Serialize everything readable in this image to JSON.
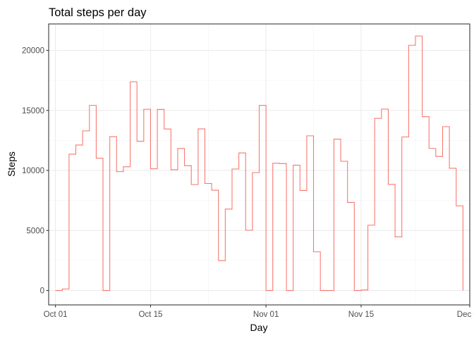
{
  "chart_data": {
    "type": "step",
    "title": "Total steps per day",
    "xlabel": "Day",
    "ylabel": "Steps",
    "line_color": "#F8766D",
    "grid": true,
    "legend": "none",
    "xlim": [
      "2012-09-30",
      "2012-12-01"
    ],
    "ylim": [
      -1200,
      22200
    ],
    "x_ticks": [
      {
        "date": "2012-10-01",
        "label": "Oct 01"
      },
      {
        "date": "2012-10-15",
        "label": "Oct 15"
      },
      {
        "date": "2012-11-01",
        "label": "Nov 01"
      },
      {
        "date": "2012-11-15",
        "label": "Nov 15"
      },
      {
        "date": "2012-12-01",
        "label": "Dec 01"
      }
    ],
    "y_ticks": [
      {
        "value": 0,
        "label": "0"
      },
      {
        "value": 5000,
        "label": "5000"
      },
      {
        "value": 10000,
        "label": "10000"
      },
      {
        "value": 15000,
        "label": "15000"
      },
      {
        "value": 20000,
        "label": "20000"
      }
    ],
    "x": [
      "2012-10-01",
      "2012-10-02",
      "2012-10-03",
      "2012-10-04",
      "2012-10-05",
      "2012-10-06",
      "2012-10-07",
      "2012-10-08",
      "2012-10-09",
      "2012-10-10",
      "2012-10-11",
      "2012-10-12",
      "2012-10-13",
      "2012-10-14",
      "2012-10-15",
      "2012-10-16",
      "2012-10-17",
      "2012-10-18",
      "2012-10-19",
      "2012-10-20",
      "2012-10-21",
      "2012-10-22",
      "2012-10-23",
      "2012-10-24",
      "2012-10-25",
      "2012-10-26",
      "2012-10-27",
      "2012-10-28",
      "2012-10-29",
      "2012-10-30",
      "2012-10-31",
      "2012-11-01",
      "2012-11-02",
      "2012-11-03",
      "2012-11-04",
      "2012-11-05",
      "2012-11-06",
      "2012-11-07",
      "2012-11-08",
      "2012-11-09",
      "2012-11-10",
      "2012-11-11",
      "2012-11-12",
      "2012-11-13",
      "2012-11-14",
      "2012-11-15",
      "2012-11-16",
      "2012-11-17",
      "2012-11-18",
      "2012-11-19",
      "2012-11-20",
      "2012-11-21",
      "2012-11-22",
      "2012-11-23",
      "2012-11-24",
      "2012-11-25",
      "2012-11-26",
      "2012-11-27",
      "2012-11-28",
      "2012-11-29",
      "2012-11-30"
    ],
    "values": [
      0,
      126,
      11352,
      12116,
      13294,
      15420,
      11015,
      0,
      12811,
      9900,
      10304,
      17382,
      12426,
      15098,
      10139,
      15084,
      13452,
      10056,
      11829,
      10395,
      8821,
      13460,
      8918,
      8355,
      2492,
      6778,
      10119,
      11458,
      5018,
      9819,
      15414,
      0,
      10600,
      10571,
      0,
      10439,
      8334,
      12883,
      3219,
      0,
      0,
      12608,
      10765,
      7336,
      0,
      41,
      5441,
      14339,
      15110,
      8841,
      4472,
      12787,
      20427,
      21194,
      14478,
      11834,
      11162,
      13646,
      10183,
      7047,
      0
    ]
  }
}
